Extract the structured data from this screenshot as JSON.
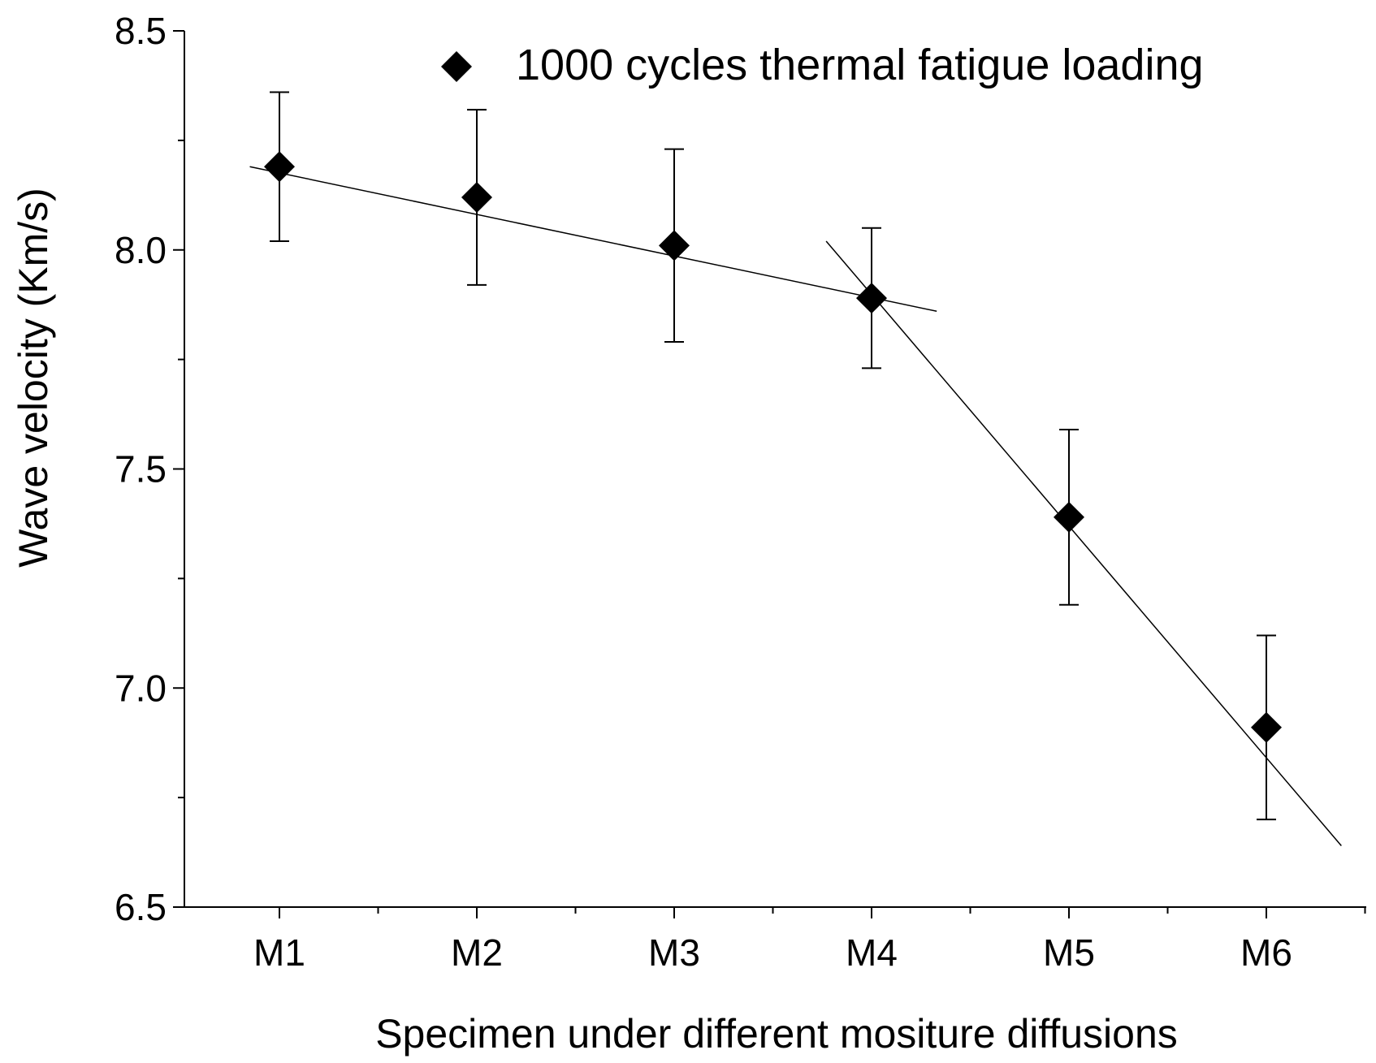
{
  "chart_data": {
    "type": "scatter",
    "categories": [
      "M1",
      "M2",
      "M3",
      "M4",
      "M5",
      "M6"
    ],
    "series": [
      {
        "name": "1000 cycles thermal fatigue loading",
        "values": [
          8.19,
          8.12,
          8.01,
          7.89,
          7.39,
          6.91
        ],
        "error_upper": [
          8.36,
          8.32,
          8.23,
          8.05,
          7.59,
          7.12
        ],
        "error_lower": [
          8.02,
          7.92,
          7.79,
          7.73,
          7.19,
          6.7
        ]
      }
    ],
    "fit_lines": [
      {
        "from": {
          "x": 0.85,
          "y": 8.19
        },
        "to": {
          "x": 4.33,
          "y": 7.86
        }
      },
      {
        "from": {
          "x": 3.77,
          "y": 8.02
        },
        "to": {
          "x": 6.38,
          "y": 6.64
        }
      }
    ],
    "xlabel": "Specimen under different mositure diffusions",
    "ylabel": "Wave velocity (Km/s)",
    "ylim": [
      6.5,
      8.5
    ],
    "xlim": [
      0.5,
      6.5
    ],
    "yticks": [
      "6.5",
      "7.0",
      "7.5",
      "8.0",
      "8.5"
    ],
    "marker": "diamond",
    "marker_color": "#000000",
    "grid": false,
    "legend_position": "top"
  }
}
